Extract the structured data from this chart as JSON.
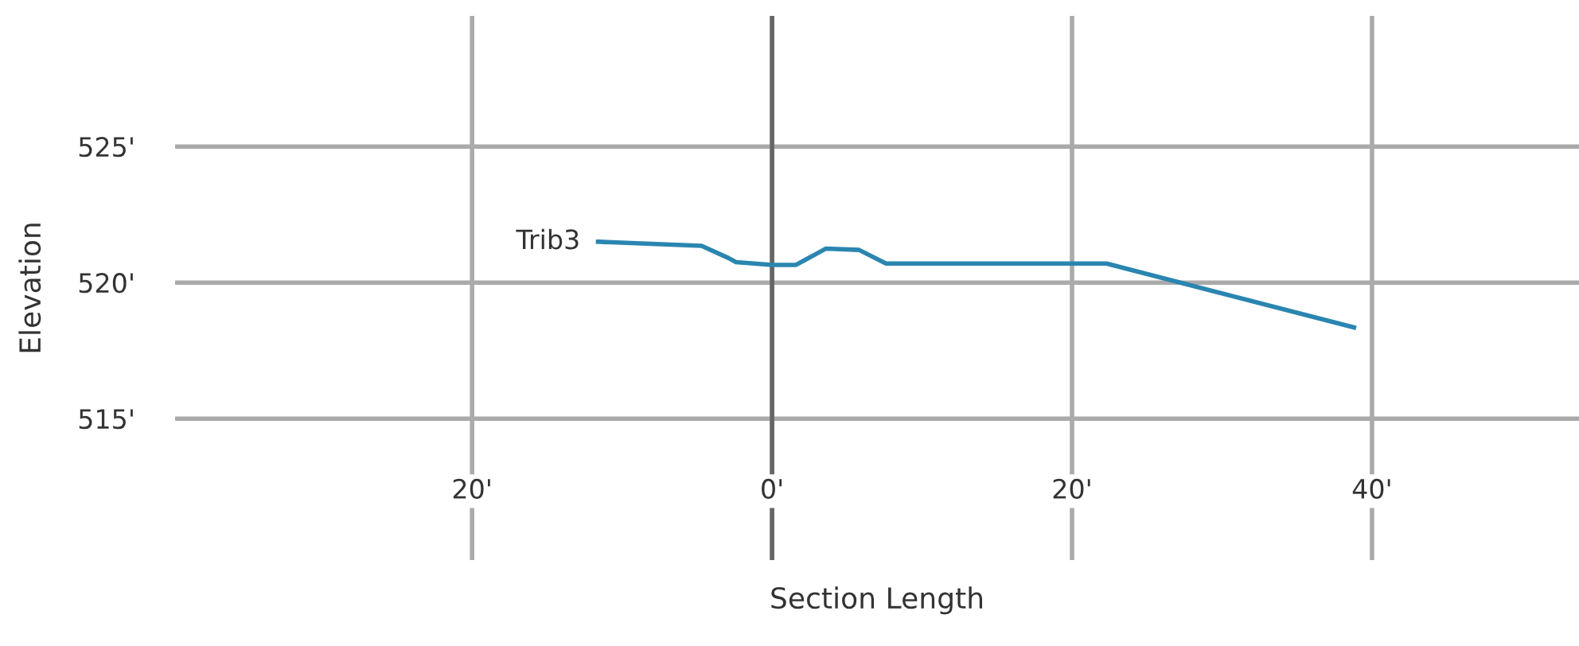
{
  "chart_data": {
    "type": "line",
    "xlabel": "Section Length",
    "ylabel": "Elevation",
    "series": [
      {
        "name": "Trib3",
        "color": "#2a86b0",
        "x": [
          -11.6,
          -4.7,
          -2.9,
          -2.4,
          0,
          1.6,
          3.6,
          5.8,
          7.6,
          22.3,
          38.8
        ],
        "values": [
          521.5,
          521.35,
          520.9,
          520.75,
          520.65,
          520.65,
          521.25,
          521.2,
          520.7,
          520.7,
          518.35
        ]
      }
    ],
    "xlim": [
      -39.8,
      53.8
    ],
    "ylim": [
      509.8,
      529.8
    ],
    "xticks": [
      {
        "value": -20,
        "label": "20'"
      },
      {
        "value": 0,
        "label": "0'"
      },
      {
        "value": 20,
        "label": "20'"
      },
      {
        "value": 40,
        "label": "40'"
      }
    ],
    "yticks": [
      {
        "value": 515,
        "label": "515'"
      },
      {
        "value": 520,
        "label": "520'"
      },
      {
        "value": 525,
        "label": "525'"
      }
    ],
    "ref_lines": [
      {
        "axis": "x",
        "value": 0,
        "label": null,
        "color": "#666666"
      }
    ],
    "grid": true,
    "marker": "none",
    "line_style": "solid"
  }
}
